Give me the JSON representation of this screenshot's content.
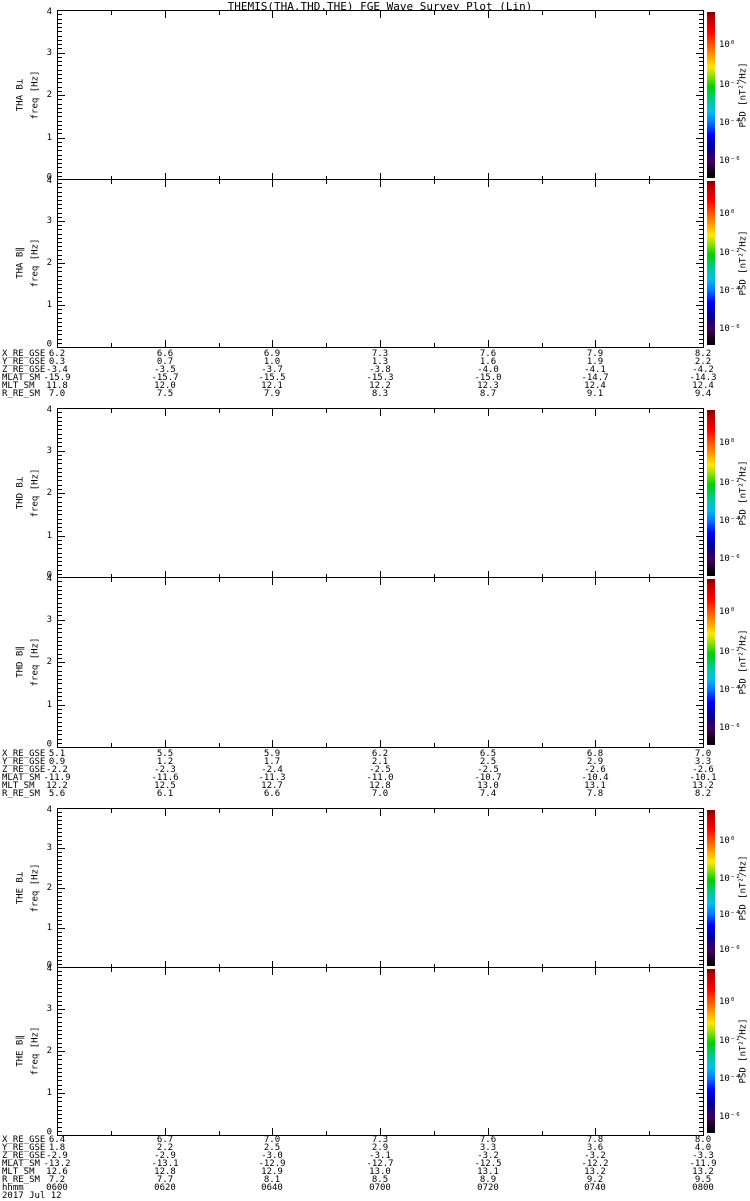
{
  "title": "THEMIS(THA,THD,THE) FGE Wave Survey Plot (Lin)",
  "chart_data": {
    "type": "heatmap",
    "title": "THEMIS(THA,THD,THE) FGE Wave Survey Plot (Lin)",
    "x_axis": {
      "label": "hhmm",
      "date": "2017 Jul 12",
      "ticks": [
        "0600",
        "0620",
        "0640",
        "0700",
        "0720",
        "0740",
        "0800"
      ],
      "range": [
        "0600",
        "0800"
      ],
      "minor_tick_minutes": 10
    },
    "y_axis": {
      "label": "freq [Hz]",
      "ticks": [
        "0",
        "1",
        "2",
        "3",
        "4"
      ],
      "range": [
        0,
        4
      ]
    },
    "colorbar": {
      "label": "PSD [nT²/Hz]",
      "ticks": [
        "10⁰",
        "10⁻²",
        "10⁻⁴",
        "10⁻⁶"
      ],
      "scale": "log",
      "gradient": [
        "#7a0000 0%",
        "#c00000 4%",
        "#ff0000 12%",
        "#ff8000 24%",
        "#ffe800 33%",
        "#a0e000 38%",
        "#00d000 45%",
        "#00c8a0 54%",
        "#00c0e8 60%",
        "#0080ff 66%",
        "#0000ff 74%",
        "#0000a0 82%",
        "#400060 90%",
        "#18001c 96%",
        "#000000 100%"
      ]
    },
    "panels": [
      {
        "id": "tha-bperp",
        "name": "THA B⊥",
        "values": []
      },
      {
        "id": "tha-bpar",
        "name": "THA B∥",
        "values": []
      },
      {
        "id": "thd-bperp",
        "name": "THD B⊥",
        "values": []
      },
      {
        "id": "thd-bpar",
        "name": "THD B∥",
        "values": []
      },
      {
        "id": "the-bperp",
        "name": "THE B⊥",
        "values": []
      },
      {
        "id": "the-bpar",
        "name": "THE B∥",
        "values": []
      }
    ],
    "data_note": "all six spectrogram panels are blank (no PSD values plotted)",
    "ephemeris": [
      {
        "spacecraft": "THA",
        "rows": [
          {
            "label": "X_RE_GSE",
            "values": [
              "6.2",
              "6.6",
              "6.9",
              "7.3",
              "7.6",
              "7.9",
              "8.2"
            ]
          },
          {
            "label": "Y_RE_GSE",
            "values": [
              "0.3",
              "0.7",
              "1.0",
              "1.3",
              "1.6",
              "1.9",
              "2.2"
            ]
          },
          {
            "label": "Z_RE_GSE",
            "values": [
              "-3.4",
              "-3.5",
              "-3.7",
              "-3.8",
              "-4.0",
              "-4.1",
              "-4.2"
            ]
          },
          {
            "label": "MLAT_SM",
            "values": [
              "-15.9",
              "-15.7",
              "-15.5",
              "-15.3",
              "-15.0",
              "-14.7",
              "-14.3"
            ]
          },
          {
            "label": "MLT_SM",
            "values": [
              "11.8",
              "12.0",
              "12.1",
              "12.2",
              "12.3",
              "12.4",
              "12.4"
            ]
          },
          {
            "label": "R_RE_SM",
            "values": [
              "7.0",
              "7.5",
              "7.9",
              "8.3",
              "8.7",
              "9.1",
              "9.4"
            ]
          }
        ]
      },
      {
        "spacecraft": "THD",
        "rows": [
          {
            "label": "X_RE_GSE",
            "values": [
              "5.1",
              "5.5",
              "5.9",
              "6.2",
              "6.5",
              "6.8",
              "7.0"
            ]
          },
          {
            "label": "Y_RE_GSE",
            "values": [
              "0.9",
              "1.2",
              "1.7",
              "2.1",
              "2.5",
              "2.9",
              "3.3"
            ]
          },
          {
            "label": "Z_RE_GSE",
            "values": [
              "-2.2",
              "-2.3",
              "-2.4",
              "-2.5",
              "-2.5",
              "-2.6",
              "-2.6"
            ]
          },
          {
            "label": "MLAT_SM",
            "values": [
              "-11.9",
              "-11.6",
              "-11.3",
              "-11.0",
              "-10.7",
              "-10.4",
              "-10.1"
            ]
          },
          {
            "label": "MLT_SM",
            "values": [
              "12.2",
              "12.5",
              "12.7",
              "12.8",
              "13.0",
              "13.1",
              "13.2"
            ]
          },
          {
            "label": "R_RE_SM",
            "values": [
              "5.6",
              "6.1",
              "6.6",
              "7.0",
              "7.4",
              "7.8",
              "8.2"
            ]
          }
        ]
      },
      {
        "spacecraft": "THE",
        "rows": [
          {
            "label": "X_RE_GSE",
            "values": [
              "6.4",
              "6.7",
              "7.0",
              "7.3",
              "7.6",
              "7.8",
              "8.0"
            ]
          },
          {
            "label": "Y_RE_GSE",
            "values": [
              "1.8",
              "2.2",
              "2.5",
              "2.9",
              "3.3",
              "3.6",
              "4.0"
            ]
          },
          {
            "label": "Z_RE_GSE",
            "values": [
              "-2.9",
              "-2.9",
              "-3.0",
              "-3.1",
              "-3.2",
              "-3.2",
              "-3.3"
            ]
          },
          {
            "label": "MLAT_SM",
            "values": [
              "-13.2",
              "-13.1",
              "-12.9",
              "-12.7",
              "-12.5",
              "-12.2",
              "-11.9"
            ]
          },
          {
            "label": "MLT_SM",
            "values": [
              "12.6",
              "12.8",
              "12.9",
              "13.0",
              "13.1",
              "13.2",
              "13.2"
            ]
          },
          {
            "label": "R_RE_SM",
            "values": [
              "7.2",
              "7.7",
              "8.1",
              "8.5",
              "8.9",
              "9.2",
              "9.5"
            ]
          }
        ],
        "hhmm": [
          "0600",
          "0620",
          "0640",
          "0700",
          "0720",
          "0740",
          "0800"
        ],
        "date": "2017 Jul 12"
      }
    ]
  }
}
